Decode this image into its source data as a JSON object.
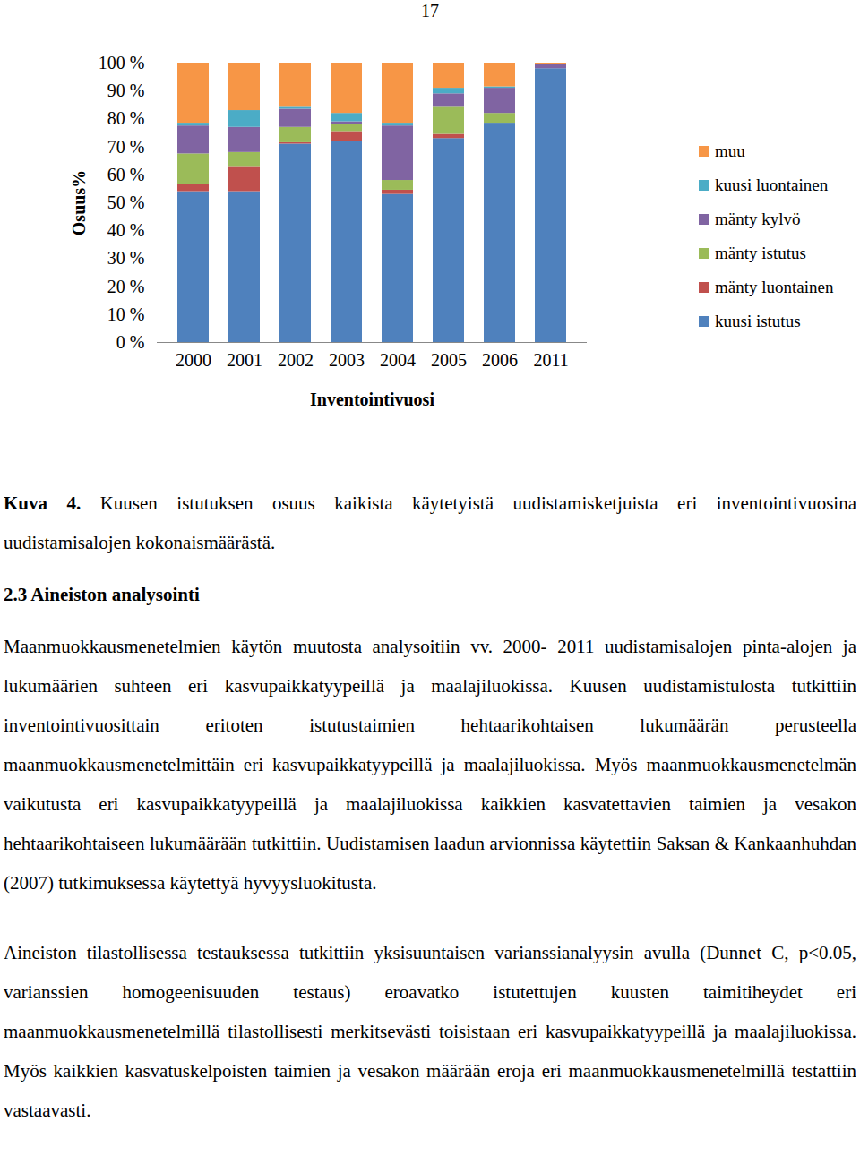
{
  "page_number": "17",
  "chart_data": {
    "type": "bar",
    "stacked": true,
    "x_label": "Inventointivuosi",
    "y_label": "Osuus%",
    "categories": [
      "2000",
      "2001",
      "2002",
      "2003",
      "2004",
      "2005",
      "2006",
      "2011"
    ],
    "ylim": [
      0,
      100
    ],
    "yticks": [
      {
        "value": 0,
        "label": "0 %"
      },
      {
        "value": 10,
        "label": "10 %"
      },
      {
        "value": 20,
        "label": "20 %"
      },
      {
        "value": 30,
        "label": "30 %"
      },
      {
        "value": 40,
        "label": "40 %"
      },
      {
        "value": 50,
        "label": "50 %"
      },
      {
        "value": 60,
        "label": "60 %"
      },
      {
        "value": 70,
        "label": "70 %"
      },
      {
        "value": 80,
        "label": "80 %"
      },
      {
        "value": 90,
        "label": "90 %"
      },
      {
        "value": 100,
        "label": "100 %"
      }
    ],
    "legend": "right",
    "series": [
      {
        "name": "kuusi istutus",
        "color": "#4F81BD",
        "values": [
          54,
          54,
          71,
          72,
          53,
          73,
          78.5,
          98
        ]
      },
      {
        "name": "mänty luontainen",
        "color": "#C0504D",
        "values": [
          2.5,
          9,
          0.5,
          3.5,
          1.5,
          1.5,
          0,
          0
        ]
      },
      {
        "name": "mänty istutus",
        "color": "#9BBB59",
        "values": [
          11,
          5,
          5.5,
          2.5,
          3.5,
          10,
          3.5,
          0
        ]
      },
      {
        "name": "mänty kylvö",
        "color": "#8064A2",
        "values": [
          10,
          9,
          6.5,
          1,
          19.5,
          4.5,
          9,
          1.5
        ]
      },
      {
        "name": "kuusi luontainen",
        "color": "#4BACC6",
        "values": [
          1,
          6,
          1,
          3,
          1,
          2,
          0.5,
          0
        ]
      },
      {
        "name": "muu",
        "color": "#F79646",
        "values": [
          21.5,
          17,
          15.5,
          18,
          21.5,
          9,
          8.5,
          0.5
        ]
      }
    ]
  },
  "caption": {
    "label": "Kuva 4.",
    "text": "Kuusen istutuksen osuus kaikista käytetyistä uudistamisketjuista eri inventointivuosina uudistamisalojen kokonaismäärästä."
  },
  "section": "2.3 Aineiston analysointi",
  "paragraphs": [
    "Maanmuokkausmenetelmien käytön muutosta analysoitiin vv. 2000- 2011 uudistamisalojen pinta-alojen ja lukumäärien suhteen eri kasvupaikkatyypeillä ja maalajiluokissa. Kuusen uudistamistulosta tutkittiin inventointivuosittain eritoten istutustaimien hehtaarikohtaisen lukumäärän perusteella maanmuokkausmenetelmittäin eri kasvupaikkatyypeillä ja maalajiluokissa. Myös maanmuokkausmenetelmän vaikutusta eri kasvupaikkatyypeillä ja maalajiluokissa kaikkien kasvatettavien taimien ja vesakon hehtaarikohtaiseen lukumäärään tutkittiin. Uudistamisen laadun arvionnissa käytettiin Saksan & Kankaanhuhdan (2007) tutkimuksessa käytettyä hyvyysluokitusta.",
    "Aineiston tilastollisessa testauksessa tutkittiin yksisuuntaisen varianssianalyysin avulla (Dunnet C, p<0.05, varianssien homogeenisuuden testaus) eroavatko istutettujen kuusten taimitiheydet eri maanmuokkausmenetelmillä tilastollisesti merkitsevästi toisistaan eri kasvupaikkatyypeillä ja maalajiluokissa. Myös kaikkien kasvatuskelpoisten taimien ja vesakon määrään eroja eri maanmuokkausmenetelmillä testattiin vastaavasti."
  ]
}
